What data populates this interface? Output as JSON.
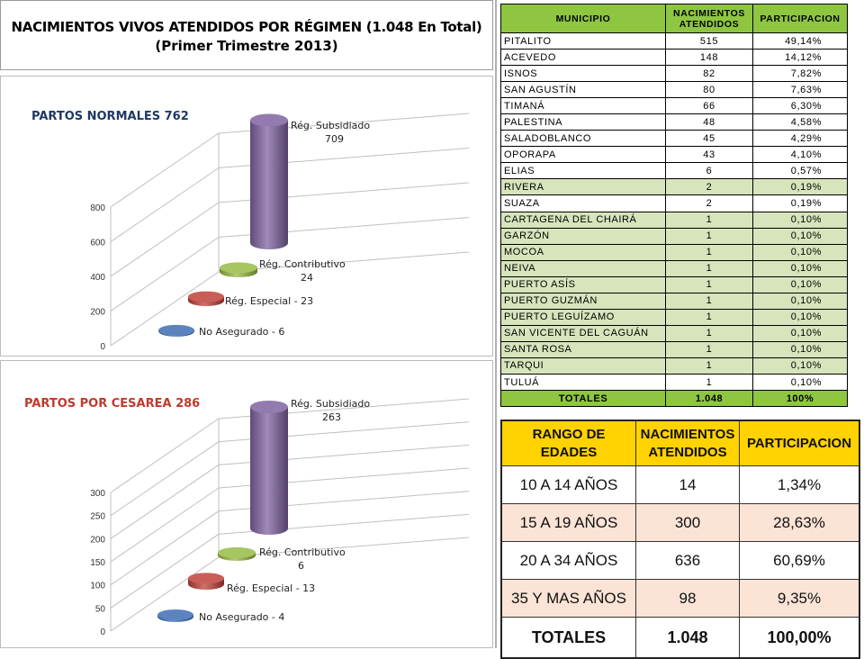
{
  "header": {
    "title_line1": "NACIMIENTOS VIVOS ATENDIDOS POR RÉGIMEN (1.048 En Total)",
    "title_line2": "(Primer Trimestre 2013)"
  },
  "chart_data": [
    {
      "type": "bar",
      "title": "PARTOS NORMALES 762",
      "categories": [
        "No Asegurado",
        "Rég. Especial",
        "Rég. Contributivo",
        "Rég. Subsidiado"
      ],
      "values": [
        6,
        23,
        24,
        709
      ],
      "labels": [
        "No Asegurado -  6",
        "Rég. Especial - 23",
        "Rég. Contributivo\n24",
        "Rég. Subsidiado\n709"
      ],
      "ylim": [
        0,
        800
      ],
      "yticks": [
        "0",
        "200",
        "400",
        "600",
        "800"
      ],
      "colors": [
        "#3e6eb4",
        "#c0413b",
        "#98bb44",
        "#8064a2"
      ],
      "grid": true
    },
    {
      "type": "bar",
      "title": "PARTOS POR CESAREA 286",
      "categories": [
        "No Asegurado",
        "Rég. Especial",
        "Rég. Contributivo",
        "Rég. Subsidiado"
      ],
      "values": [
        4,
        13,
        6,
        263
      ],
      "labels": [
        "No Asegurado -  4",
        "Rég. Especial - 13",
        "Rég. Contributivo\n6",
        "Rég. Subsidiado\n263"
      ],
      "ylim": [
        0,
        300
      ],
      "yticks": [
        "0",
        "50",
        "100",
        "150",
        "200",
        "250",
        "300"
      ],
      "colors": [
        "#3e6eb4",
        "#c0413b",
        "#98bb44",
        "#8064a2"
      ],
      "grid": true
    }
  ],
  "chart_colors": {
    "title1": "#1f3864",
    "title2": "#c0392b"
  },
  "muni_table": {
    "headers": [
      "MUNICIPIO",
      "NACIMIENTOS ATENDIDOS",
      "PARTICIPACION"
    ],
    "rows": [
      [
        "PITALITO",
        "515",
        "49,14%"
      ],
      [
        "ACEVEDO",
        "148",
        "14,12%"
      ],
      [
        "ISNOS",
        "82",
        "7,82%"
      ],
      [
        "SAN AGUSTÍN",
        "80",
        "7,63%"
      ],
      [
        "TIMANÁ",
        "66",
        "6,30%"
      ],
      [
        "PALESTINA",
        "48",
        "4,58%"
      ],
      [
        "SALADOBLANCO",
        "45",
        "4,29%"
      ],
      [
        "OPORAPA",
        "43",
        "4,10%"
      ],
      [
        "ELIAS",
        "6",
        "0,57%"
      ],
      [
        "RIVERA",
        "2",
        "0,19%"
      ],
      [
        "SUAZA",
        "2",
        "0,19%"
      ],
      [
        "CARTAGENA DEL CHAIRÁ",
        "1",
        "0,10%"
      ],
      [
        "GARZÓN",
        "1",
        "0,10%"
      ],
      [
        "MOCOA",
        "1",
        "0,10%"
      ],
      [
        "NEIVA",
        "1",
        "0,10%"
      ],
      [
        "PUERTO ASÍS",
        "1",
        "0,10%"
      ],
      [
        "PUERTO GUZMÁN",
        "1",
        "0,10%"
      ],
      [
        "PUERTO LEGUÍZAMO",
        "1",
        "0,10%"
      ],
      [
        "SAN VICENTE DEL CAGUÁN",
        "1",
        "0,10%"
      ],
      [
        "SANTA ROSA",
        "1",
        "0,10%"
      ],
      [
        "TARQUI",
        "1",
        "0,10%"
      ],
      [
        "TULUÁ",
        "1",
        "0,10%"
      ]
    ],
    "green_rows": [
      9,
      11,
      12,
      13,
      14,
      15,
      16,
      17,
      18,
      19,
      20
    ],
    "total": [
      "TOTALES",
      "1.048",
      "100%"
    ],
    "header_color": "#8ec641",
    "band_color": "#d7e4bc"
  },
  "age_table": {
    "headers": [
      "RANGO DE EDADES",
      "NACIMIENTOS ATENDIDOS",
      "PARTICIPACION"
    ],
    "rows": [
      [
        "10 A 14 AÑOS",
        "14",
        "1,34%"
      ],
      [
        "15 A 19 AÑOS",
        "300",
        "28,63%"
      ],
      [
        "20 A 34 AÑOS",
        "636",
        "60,69%"
      ],
      [
        "35 Y MAS AÑOS",
        "98",
        "9,35%"
      ]
    ],
    "peach_rows": [
      1,
      3
    ],
    "total": [
      "TOTALES",
      "1.048",
      "100,00%"
    ],
    "header_color": "#ffd200",
    "band_color": "#fbe3d6"
  }
}
